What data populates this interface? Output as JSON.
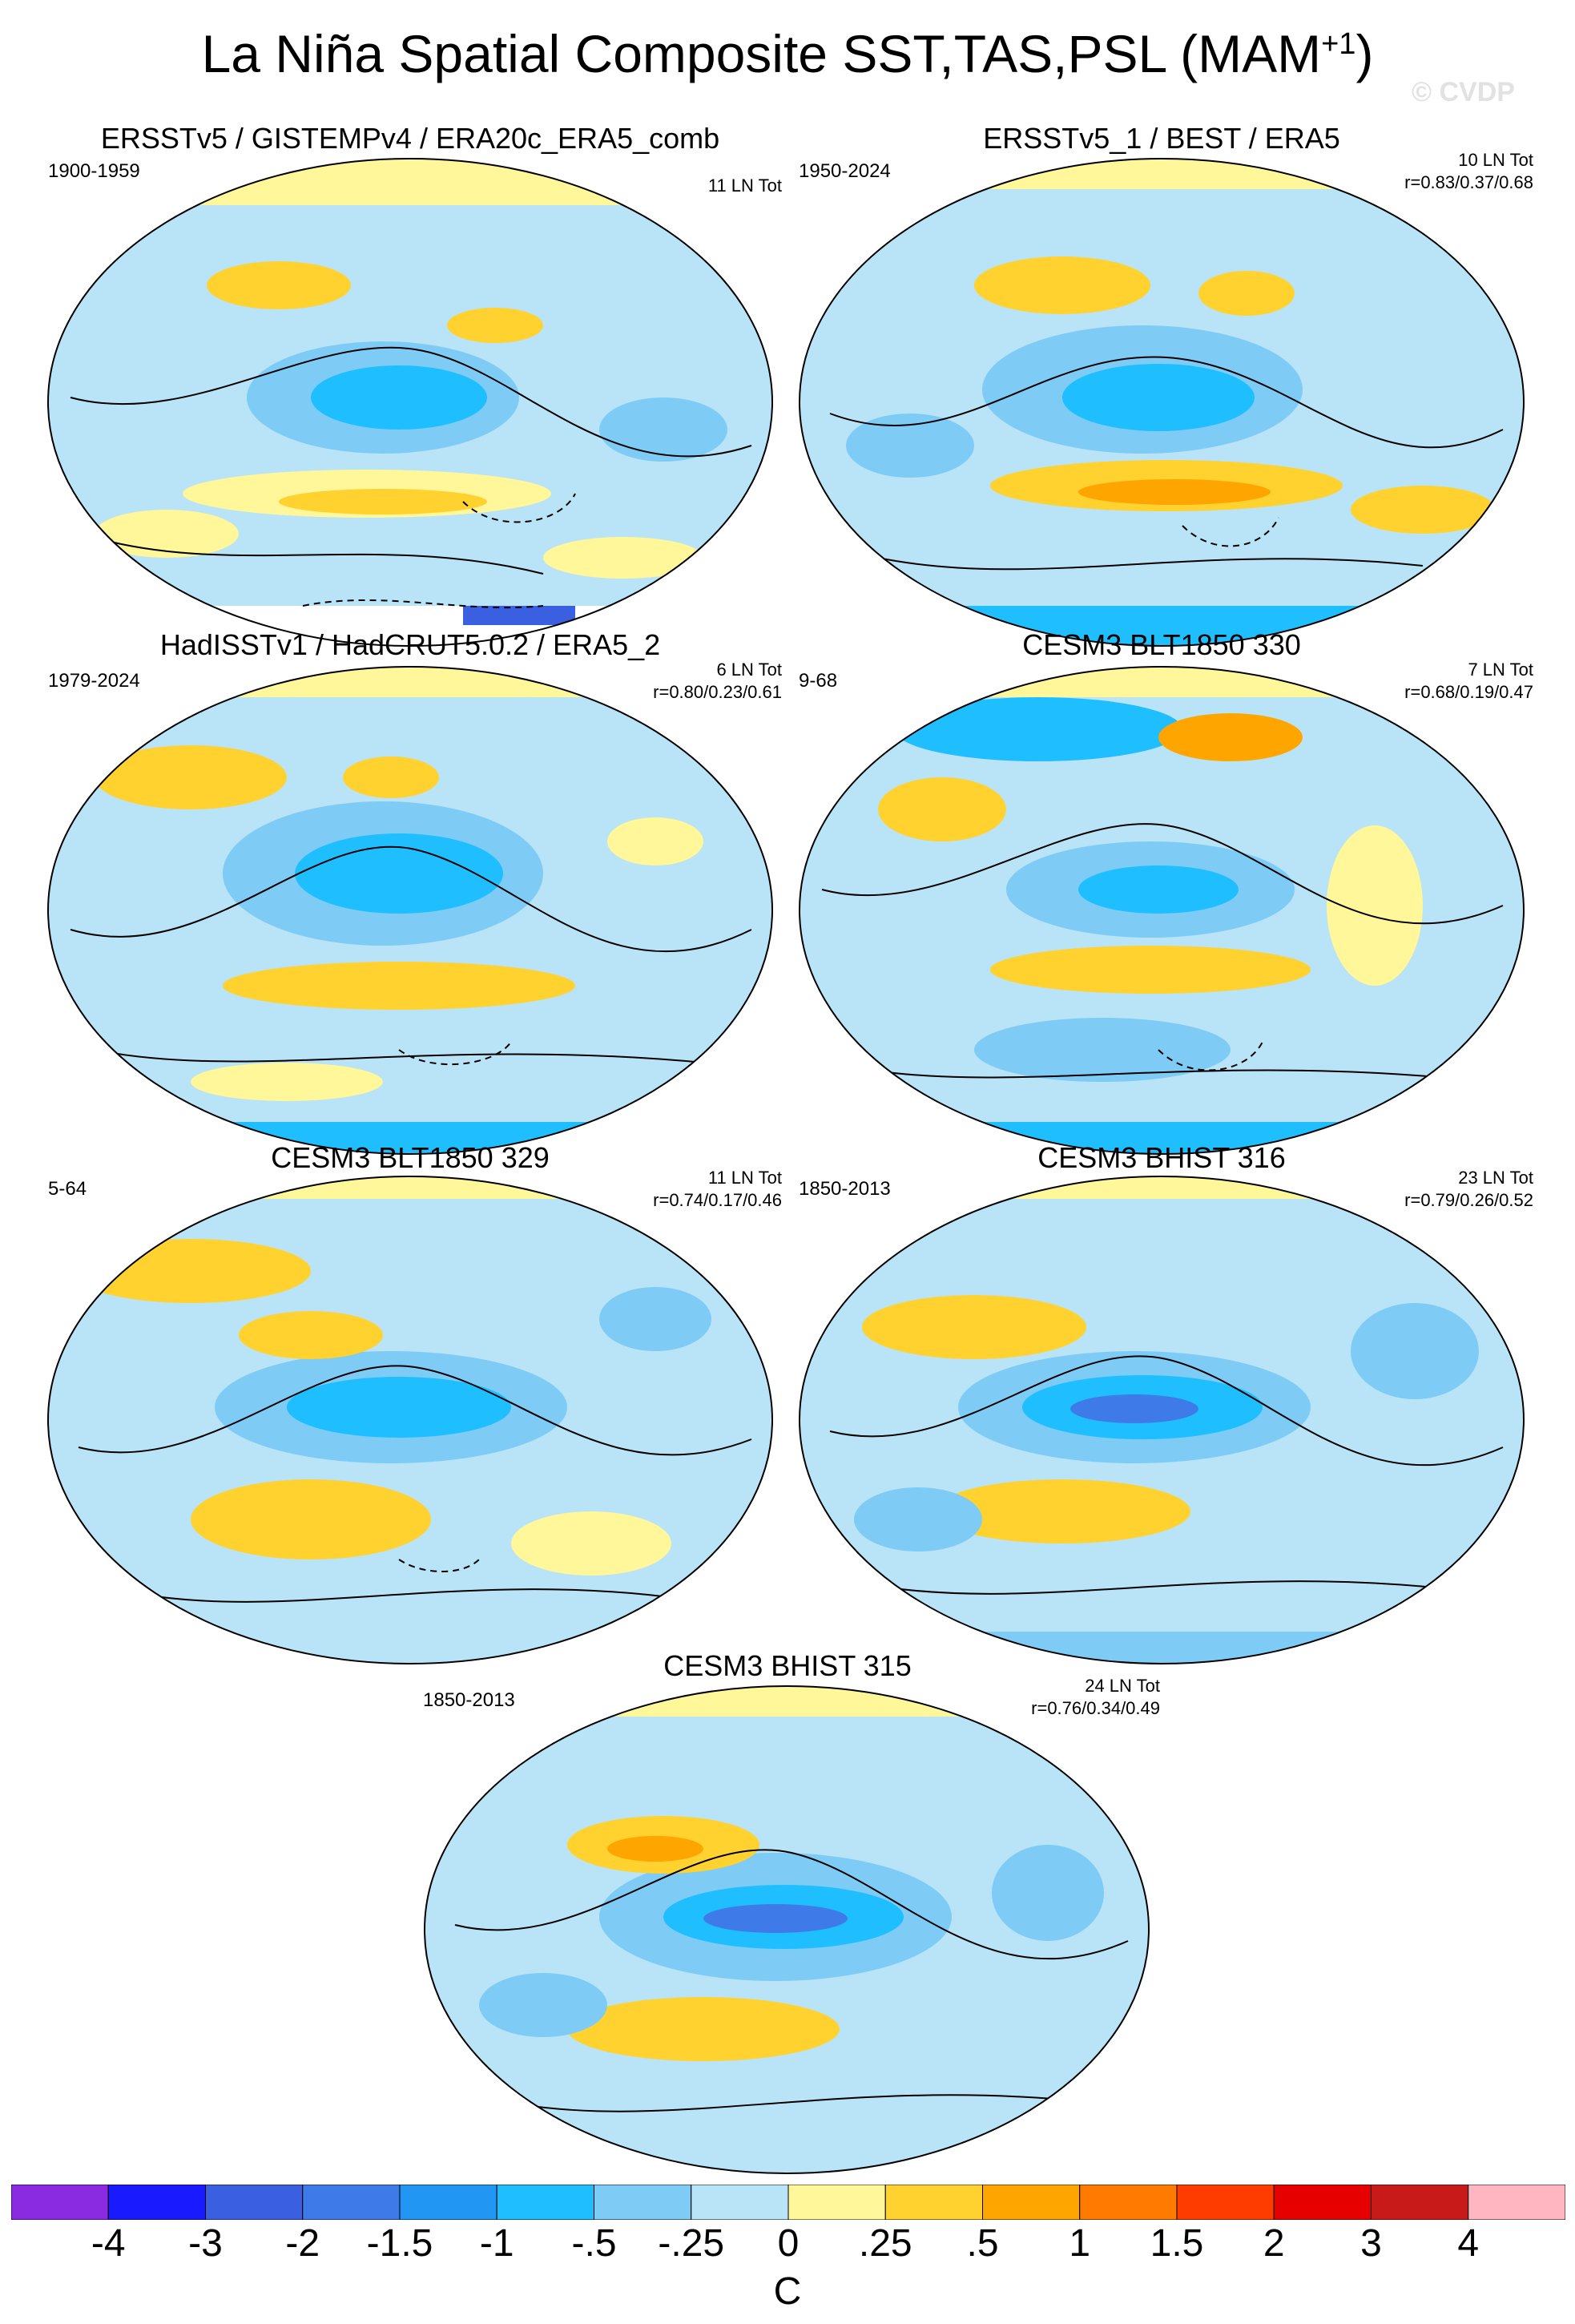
{
  "figure": {
    "title": "La Niña Spatial Composite SST,TAS,PSL (MAM",
    "title_superscript": "+1",
    "title_close": ")",
    "watermark": "© CVDP"
  },
  "panels": [
    {
      "title": "ERSSTv5 / GISTEMPv4 / ERA20c_ERA5_comb",
      "period": "1900-1959",
      "count": "11 LN Tot",
      "corr": ""
    },
    {
      "title": "ERSSTv5_1 / BEST / ERA5",
      "period": "1950-2024",
      "count": "10 LN Tot",
      "corr": "r=0.83/0.37/0.68"
    },
    {
      "title": "HadISSTv1 / HadCRUT5.0.2 / ERA5_2",
      "period": "1979-2024",
      "count": "6 LN Tot",
      "corr": "r=0.80/0.23/0.61"
    },
    {
      "title": "CESM3 BLT1850 330",
      "period": "9-68",
      "count": "7 LN Tot",
      "corr": "r=0.68/0.19/0.47"
    },
    {
      "title": "CESM3 BLT1850 329",
      "period": "5-64",
      "count": "11 LN Tot",
      "corr": "r=0.74/0.17/0.46"
    },
    {
      "title": "CESM3 BHIST 316",
      "period": "1850-2013",
      "count": "23 LN Tot",
      "corr": "r=0.79/0.26/0.52"
    },
    {
      "title": "CESM3 BHIST 315",
      "period": "1850-2013",
      "count": "24 LN Tot",
      "corr": "r=0.76/0.34/0.49"
    }
  ],
  "colorbar": {
    "colors": [
      "#8a2be2",
      "#1a1aff",
      "#3a5fe0",
      "#3f7be8",
      "#2196f3",
      "#1fbfff",
      "#7ecbf5",
      "#b9e3f7",
      "#fff799",
      "#ffd230",
      "#ffa500",
      "#ff7a00",
      "#ff3c00",
      "#e60000",
      "#c91a1a",
      "#ffb6c1"
    ],
    "labels": [
      "-4",
      "-3",
      "-2",
      "-1.5",
      "-1",
      "-.5",
      "-.25",
      "0",
      ".25",
      ".5",
      "1",
      "1.5",
      "2",
      "3",
      "4"
    ],
    "unit": "C"
  }
}
